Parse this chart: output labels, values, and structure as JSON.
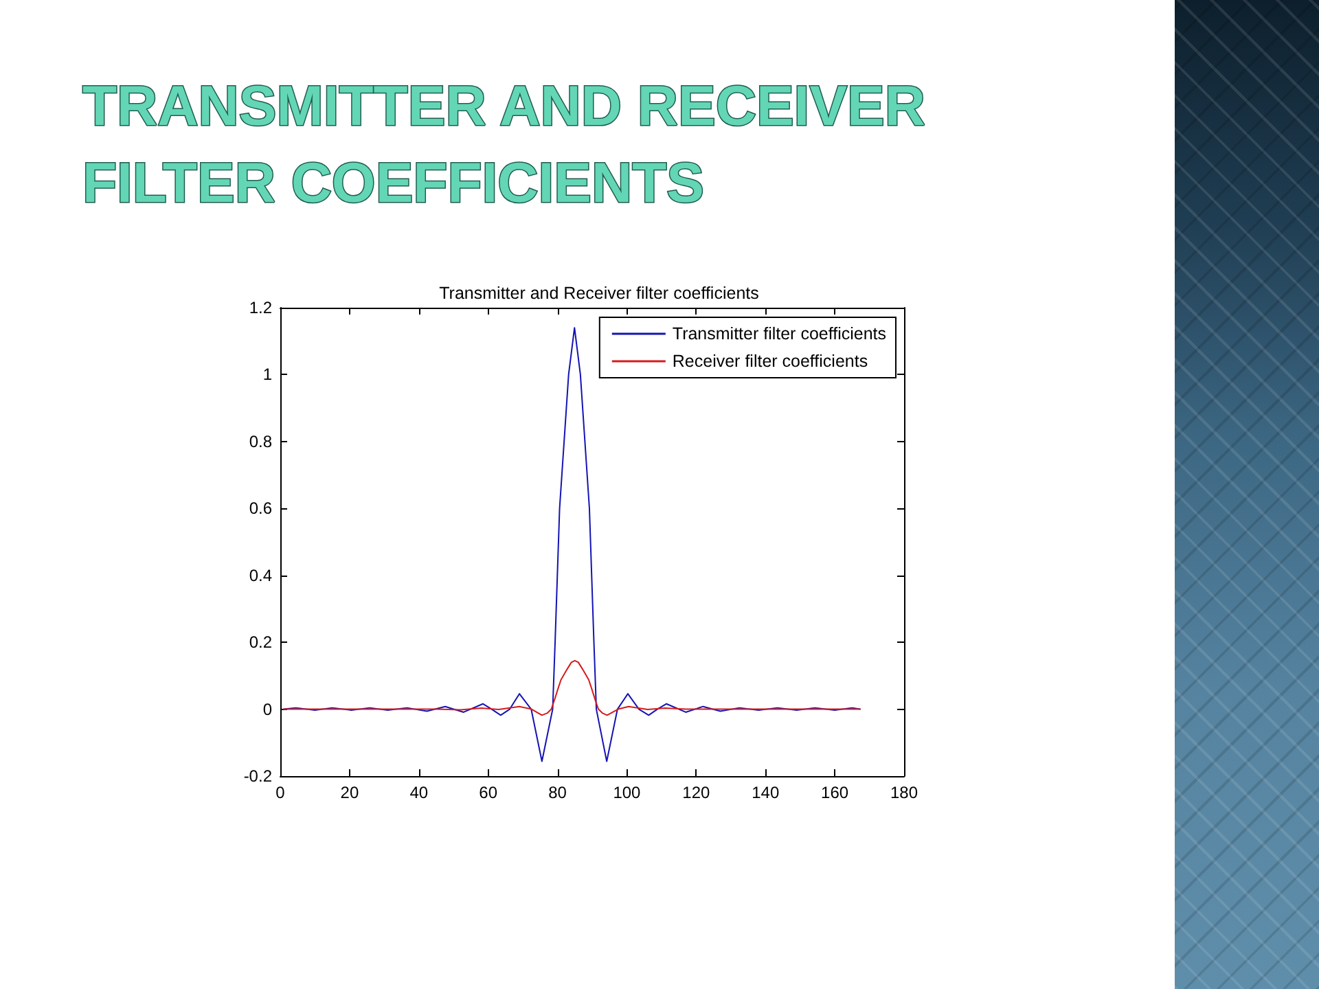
{
  "chart_data": {
    "type": "line",
    "title": "TRANSMITTER AND RECEIVER FILTER COEFFICIENTS",
    "subtitle": "Transmitter and Receiver filter coefficients",
    "series": [
      {
        "name": "Transmitter filter coefficients",
        "color": "#1414b4",
        "x": [
          1,
          4.5,
          10,
          15,
          20.5,
          25.8,
          31,
          36.6,
          42.3,
          47.6,
          52.9,
          58.5,
          61,
          63.6,
          66.2,
          69,
          72.4,
          75.5,
          78.6,
          79.3,
          80.6,
          83.2,
          84.9,
          86.6,
          89.2,
          90.5,
          91.2,
          94.2,
          97.3,
          100.3,
          103.5,
          106.3,
          108.8,
          111.4,
          117,
          122,
          127,
          132.5,
          138,
          143.5,
          149,
          154.3,
          160,
          165,
          167.3
        ],
        "values": [
          0,
          0.004,
          -0.003,
          0.004,
          -0.003,
          0.004,
          -0.003,
          0.004,
          -0.006,
          0.008,
          -0.009,
          0.016,
          0,
          -0.018,
          0,
          0.046,
          0,
          -0.156,
          0,
          0.2,
          0.6,
          1.0,
          1.14,
          1.0,
          0.6,
          0.2,
          0,
          -0.156,
          0,
          0.046,
          0,
          -0.018,
          0,
          0.016,
          -0.009,
          0.008,
          -0.006,
          0.004,
          -0.003,
          0.004,
          -0.003,
          0.004,
          -0.003,
          0.004,
          0
        ]
      },
      {
        "name": "Receiver filter coefficients",
        "color": "#d41c1c",
        "x": [
          1,
          45,
          52,
          58,
          63,
          69,
          72.5,
          75.5,
          77,
          78.2,
          79.2,
          80.1,
          81,
          82.8,
          84,
          85,
          86,
          87.2,
          89,
          89.9,
          90.8,
          91.8,
          93,
          94.3,
          97.5,
          100.5,
          106,
          111,
          117,
          167.3
        ],
        "values": [
          0,
          0,
          -0.002,
          0.003,
          -0.001,
          0.008,
          0,
          -0.018,
          -0.012,
          0,
          0.03,
          0.06,
          0.088,
          0.12,
          0.14,
          0.145,
          0.14,
          0.12,
          0.088,
          0.06,
          0.03,
          0,
          -0.012,
          -0.018,
          0,
          0.008,
          -0.001,
          0.003,
          0,
          0
        ]
      }
    ],
    "xlim": [
      0,
      180
    ],
    "xticks": [
      0,
      20,
      40,
      60,
      80,
      100,
      120,
      140,
      160,
      180
    ],
    "ylim": [
      -0.2,
      1.2
    ],
    "yticks": [
      -0.2,
      0,
      0.2,
      0.4,
      0.6,
      0.8,
      1,
      1.2
    ],
    "grid": false,
    "legend": "top right",
    "marker": "none",
    "line_style": "solid"
  }
}
